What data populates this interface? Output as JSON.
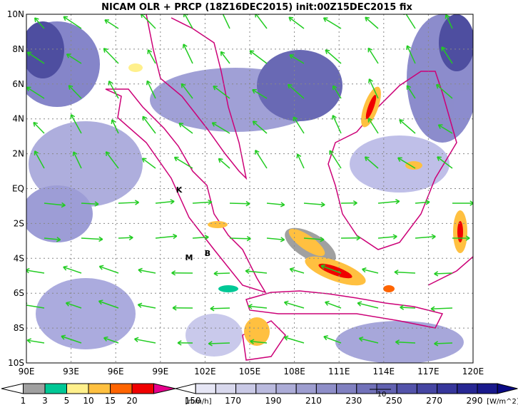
{
  "header": {
    "title": "NICAM OLR + PRCP (18Z16DEC2015) init:00Z15DEC2015 fix"
  },
  "map": {
    "lon_labels": [
      "90E",
      "93E",
      "96E",
      "99E",
      "102E",
      "105E",
      "108E",
      "111E",
      "114E",
      "117E",
      "120E"
    ],
    "lat_labels": [
      "10N",
      "8N",
      "6N",
      "4N",
      "2N",
      "EQ",
      "2S",
      "4S",
      "6S",
      "8S",
      "10S"
    ],
    "markers": [
      {
        "label": "K"
      },
      {
        "label": "M"
      },
      {
        "label": "B"
      }
    ]
  },
  "precip_legend": {
    "unit": "[mm/h]",
    "labels": [
      1,
      3,
      5,
      10,
      15,
      20
    ],
    "colors": [
      "#ffffff",
      "#a0a0a0",
      "#00c896",
      "#fff08c",
      "#ffc040",
      "#ff6400",
      "#f00000",
      "#e6008c"
    ]
  },
  "olr_legend": {
    "unit": "[W/m^2]",
    "labels": [
      150,
      170,
      190,
      210,
      230,
      250,
      270,
      290
    ]
  },
  "vector_legend": {
    "label": "10"
  }
}
